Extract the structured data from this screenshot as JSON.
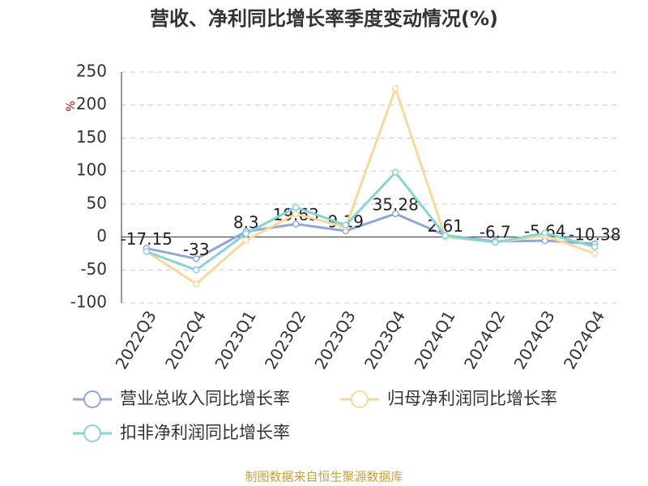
{
  "chart_data": {
    "type": "line",
    "title": "营收、净利同比增长率季度变动情况(%)",
    "y_label": "%",
    "source": "制图数据来自恒生聚源数据库",
    "categories": [
      "2022Q3",
      "2022Q4",
      "2023Q1",
      "2023Q2",
      "2023Q3",
      "2023Q4",
      "2024Q1",
      "2024Q2",
      "2024Q3",
      "2024Q4"
    ],
    "series": [
      {
        "name": "营业总收入同比增长率",
        "color": "#91a7d8",
        "values": [
          -17.15,
          -33,
          8.3,
          19.63,
          9.19,
          35.28,
          2.61,
          -6.7,
          -5.64,
          -10.38
        ],
        "show_labels": true
      },
      {
        "name": "归母净利润同比增长率",
        "color": "#f9d89b",
        "values": [
          -22,
          -71,
          -5,
          35,
          15,
          225,
          0,
          -8,
          2,
          -25
        ]
      },
      {
        "name": "扣非净利润同比增长率",
        "color": "#86d4d6",
        "values": [
          -22,
          -50,
          5,
          45,
          18,
          98,
          2,
          -8,
          6,
          -15
        ]
      }
    ],
    "ylim": [
      -100,
      250
    ],
    "yticks": [
      -100,
      -50,
      0,
      50,
      100,
      150,
      200,
      250
    ],
    "grid": true
  }
}
